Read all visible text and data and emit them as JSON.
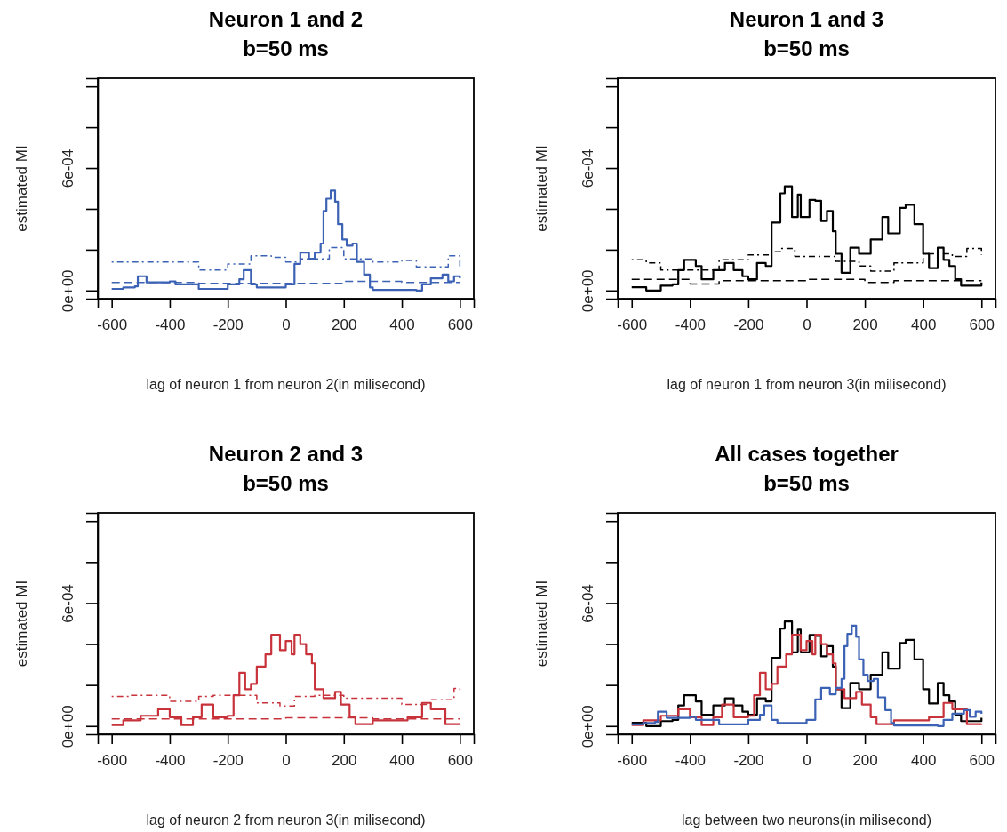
{
  "chart_data": [
    {
      "type": "step",
      "title": "Neuron 1 and 2",
      "subtitle": "b=50 ms",
      "xlabel": "lag of neuron 1 from neuron 2(in milisecond)",
      "ylabel": "estimated MI",
      "xlim": [
        -648,
        648
      ],
      "ylim": [
        -4e-05,
        0.00104
      ],
      "xticks": [
        -600,
        -400,
        -200,
        0,
        200,
        400,
        600
      ],
      "yticks": [
        {
          "value": 0,
          "label": "0e+00"
        },
        {
          "value": 0.0002,
          "label": null
        },
        {
          "value": 0.0004,
          "label": null
        },
        {
          "value": 0.0006,
          "label": "6e-04"
        },
        {
          "value": 0.0008,
          "label": null
        },
        {
          "value": 0.001,
          "label": null
        }
      ],
      "series": [
        {
          "color": "#3b62b5",
          "line_style": "solid",
          "x": [
            -600,
            -560,
            -520,
            -510,
            -480,
            -400,
            -380,
            -300,
            -200,
            -160,
            -145,
            -120,
            -100,
            0,
            30,
            50,
            80,
            100,
            120,
            130,
            140,
            155,
            170,
            180,
            195,
            210,
            230,
            245,
            270,
            290,
            300,
            400,
            450,
            470,
            500,
            540,
            560,
            580,
            600
          ],
          "values": [
            8e-06,
            1.5e-05,
            2e-05,
            7e-05,
            4e-05,
            4.5e-05,
            3e-05,
            8e-06,
            3e-05,
            5.5e-05,
            0.0001,
            3e-05,
            1.5e-05,
            3e-05,
            0.00013,
            0.000186,
            0.000155,
            0.000186,
            0.00023,
            0.00039,
            0.00045,
            0.00049,
            0.000435,
            0.000325,
            0.00025,
            0.00022,
            0.00023,
            0.00014,
            7.8e-05,
            1.5e-05,
            3e-06,
            3e-06,
            0,
            3e-05,
            6e-05,
            7.8e-05,
            4.5e-05,
            7e-05,
            6e-05
          ]
        },
        {
          "color": "#3b62b5",
          "line_style": "dotted",
          "x": [
            -600,
            -400,
            -300,
            -200,
            -120,
            -50,
            0,
            50,
            150,
            200,
            300,
            400,
            450,
            500,
            560,
            600
          ],
          "values": [
            0.00014,
            0.00014,
            0.0001,
            0.00013,
            0.00017,
            0.000163,
            0.00014,
            0.000155,
            0.00021,
            0.000155,
            0.00014,
            0.000147,
            0.000116,
            0.000116,
            0.00017,
            0.000116
          ]
        },
        {
          "color": "#3b62b5",
          "line_style": "dashed",
          "x": [
            -600,
            -300,
            0,
            200,
            400,
            600
          ],
          "values": [
            4e-05,
            3.5e-05,
            3.5e-05,
            4.5e-05,
            4e-05,
            4e-05
          ]
        }
      ]
    },
    {
      "type": "step",
      "title": "Neuron 1 and 3",
      "subtitle": "b=50 ms",
      "xlabel": "lag of neuron 1 from neuron 3(in milisecond)",
      "ylabel": "estimated MI",
      "xlim": [
        -648,
        648
      ],
      "ylim": [
        -4e-05,
        0.00104
      ],
      "xticks": [
        -600,
        -400,
        -200,
        0,
        200,
        400,
        600
      ],
      "yticks": [
        {
          "value": 0,
          "label": "0e+00"
        },
        {
          "value": 0.0002,
          "label": null
        },
        {
          "value": 0.0004,
          "label": null
        },
        {
          "value": 0.0006,
          "label": "6e-04"
        },
        {
          "value": 0.0008,
          "label": null
        },
        {
          "value": 0.001,
          "label": null
        }
      ],
      "series": [
        {
          "color": "#000000",
          "line_style": "solid",
          "x": [
            -600,
            -550,
            -500,
            -460,
            -440,
            -420,
            -380,
            -360,
            -320,
            -280,
            -250,
            -220,
            -200,
            -170,
            -140,
            -120,
            -90,
            -75,
            -50,
            -30,
            -20,
            10,
            30,
            50,
            70,
            90,
            100,
            120,
            150,
            180,
            220,
            260,
            280,
            320,
            340,
            370,
            400,
            420,
            450,
            470,
            490,
            510,
            530,
            600
          ],
          "values": [
            1.6e-05,
            0,
            2.4e-05,
            3e-05,
            0.0001,
            0.00015,
            0.00012,
            5.5e-05,
            0.0001,
            0.000135,
            0.0001,
            7e-05,
            5.5e-05,
            0.000135,
            0.00012,
            0.000333,
            0.000476,
            0.00051,
            0.00036,
            0.00047,
            0.00036,
            0.000444,
            0.00044,
            0.00034,
            0.00039,
            0.00029,
            0.00018,
            8.7e-05,
            0.00021,
            0.00018,
            0.00025,
            0.00036,
            0.00028,
            0.000405,
            0.00042,
            0.000325,
            0.00018,
            0.00011,
            0.00021,
            0.00015,
            0.00012,
            5.5e-05,
            2.4e-05,
            4e-05
          ]
        },
        {
          "color": "#000000",
          "line_style": "dotted",
          "x": [
            -600,
            -550,
            -500,
            -300,
            -200,
            -120,
            -90,
            -40,
            100,
            180,
            220,
            300,
            400,
            500,
            550,
            600
          ],
          "values": [
            0.00015,
            0.000135,
            0.0001,
            0.00015,
            0.000175,
            0.00019,
            0.000206,
            0.000167,
            0.000143,
            0.00012,
            9.5e-05,
            0.000135,
            0.00018,
            0.000167,
            0.000206,
            0.000175
          ]
        },
        {
          "color": "#000000",
          "line_style": "dashed",
          "x": [
            -600,
            -400,
            -300,
            0,
            200,
            300,
            600
          ],
          "values": [
            5.5e-05,
            3.2e-05,
            4.8e-05,
            5.5e-05,
            4e-05,
            4.8e-05,
            4.8e-05
          ]
        }
      ]
    },
    {
      "type": "step",
      "title": "Neuron 2 and 3",
      "subtitle": "b=50 ms",
      "xlabel": "lag of neuron 2 from neuron 3(in milisecond)",
      "ylabel": "estimated MI",
      "xlim": [
        -648,
        648
      ],
      "ylim": [
        -4e-05,
        0.00104
      ],
      "xticks": [
        -600,
        -400,
        -200,
        0,
        200,
        400,
        600
      ],
      "yticks": [
        {
          "value": 0,
          "label": "0e+00"
        },
        {
          "value": 0.0002,
          "label": null
        },
        {
          "value": 0.0004,
          "label": null
        },
        {
          "value": 0.0006,
          "label": "6e-04"
        },
        {
          "value": 0.0008,
          "label": null
        },
        {
          "value": 0.001,
          "label": null
        }
      ],
      "series": [
        {
          "color": "#c8323a",
          "line_style": "solid",
          "x": [
            -600,
            -560,
            -500,
            -440,
            -400,
            -360,
            -320,
            -290,
            -250,
            -200,
            -180,
            -160,
            -140,
            -120,
            -100,
            -70,
            -50,
            -20,
            0,
            20,
            30,
            50,
            70,
            90,
            100,
            130,
            170,
            190,
            220,
            240,
            300,
            350,
            420,
            470,
            500,
            550,
            600
          ],
          "values": [
            5e-06,
            2.8e-05,
            5e-05,
            8.2e-05,
            4.3e-05,
            5e-06,
            4.3e-05,
            0.000105,
            4.3e-05,
            5e-05,
            0.00015,
            0.00026,
            0.00018,
            0.000206,
            0.00029,
            0.00035,
            0.000445,
            0.00037,
            0.000415,
            0.00035,
            0.000445,
            0.0004,
            0.00035,
            0.000306,
            0.00018,
            0.000136,
            0.000167,
            0.000105,
            4.3e-05,
            9e-06,
            2.8e-05,
            2.8e-05,
            4.3e-05,
            0.000113,
            8.2e-05,
            9e-06,
            1.2e-05
          ]
        },
        {
          "color": "#c8323a",
          "line_style": "dotted",
          "x": [
            -600,
            -540,
            -400,
            -300,
            -250,
            -200,
            -100,
            -20,
            30,
            100,
            200,
            300,
            400,
            500,
            580,
            600
          ],
          "values": [
            0.000144,
            0.00015,
            0.00012,
            0.000144,
            0.00015,
            0.00015,
            0.000113,
            9.8e-05,
            0.000144,
            0.00015,
            0.000136,
            0.000136,
            0.000105,
            0.000128,
            0.000183,
            0.000167
          ]
        },
        {
          "color": "#c8323a",
          "line_style": "dashed",
          "x": [
            -600,
            0,
            300,
            600
          ],
          "values": [
            3.5e-05,
            4e-05,
            3.5e-05,
            3.5e-05
          ]
        }
      ]
    },
    {
      "type": "step",
      "title": "All cases together",
      "subtitle": "b=50 ms",
      "xlabel": "lag between two neurons(in milisecond)",
      "ylabel": "estimated MI",
      "xlim": [
        -648,
        648
      ],
      "ylim": [
        -4e-05,
        0.00104
      ],
      "xticks": [
        -600,
        -400,
        -200,
        0,
        200,
        400,
        600
      ],
      "yticks": [
        {
          "value": 0,
          "label": "0e+00"
        },
        {
          "value": 0.0002,
          "label": null
        },
        {
          "value": 0.0004,
          "label": null
        },
        {
          "value": 0.0006,
          "label": "6e-04"
        },
        {
          "value": 0.0008,
          "label": null
        },
        {
          "value": 0.001,
          "label": null
        }
      ],
      "series": [
        {
          "color": "#000000",
          "line_style": "solid",
          "x": [
            -600,
            -550,
            -500,
            -460,
            -440,
            -420,
            -380,
            -360,
            -320,
            -280,
            -250,
            -220,
            -200,
            -170,
            -140,
            -120,
            -90,
            -75,
            -50,
            -30,
            -20,
            10,
            30,
            50,
            70,
            90,
            100,
            120,
            150,
            180,
            220,
            260,
            280,
            320,
            340,
            370,
            400,
            420,
            450,
            470,
            490,
            510,
            530,
            600
          ],
          "values": [
            1.6e-05,
            0,
            2.4e-05,
            3e-05,
            0.0001,
            0.00015,
            0.00012,
            5.5e-05,
            0.0001,
            0.000135,
            0.0001,
            7e-05,
            5.5e-05,
            0.000135,
            0.00012,
            0.000333,
            0.000476,
            0.00051,
            0.00036,
            0.00047,
            0.00036,
            0.000444,
            0.00044,
            0.00034,
            0.00039,
            0.00029,
            0.00018,
            8.7e-05,
            0.00021,
            0.00018,
            0.00025,
            0.00036,
            0.00028,
            0.000405,
            0.00042,
            0.000325,
            0.00018,
            0.00011,
            0.00021,
            0.00015,
            0.00012,
            5.5e-05,
            2.4e-05,
            4e-05
          ]
        },
        {
          "color": "#c8323a",
          "line_style": "solid",
          "x": [
            -600,
            -560,
            -500,
            -440,
            -400,
            -360,
            -320,
            -290,
            -250,
            -200,
            -180,
            -160,
            -140,
            -120,
            -100,
            -70,
            -50,
            -20,
            0,
            20,
            30,
            50,
            70,
            90,
            100,
            130,
            170,
            190,
            220,
            240,
            300,
            350,
            420,
            470,
            500,
            550,
            600
          ],
          "values": [
            5e-06,
            2.8e-05,
            5e-05,
            8.2e-05,
            4.3e-05,
            5e-06,
            4.3e-05,
            0.000105,
            4.3e-05,
            5e-05,
            0.00015,
            0.00026,
            0.00018,
            0.000206,
            0.00029,
            0.00035,
            0.000445,
            0.00037,
            0.000415,
            0.00035,
            0.000445,
            0.0004,
            0.00035,
            0.000306,
            0.00018,
            0.000136,
            0.000167,
            0.000105,
            4.3e-05,
            9e-06,
            2.8e-05,
            2.8e-05,
            4.3e-05,
            0.000113,
            8.2e-05,
            9e-06,
            1.2e-05
          ]
        },
        {
          "color": "#3b62b5",
          "line_style": "solid",
          "x": [
            -600,
            -560,
            -520,
            -510,
            -480,
            -400,
            -380,
            -300,
            -200,
            -160,
            -145,
            -120,
            -100,
            0,
            30,
            50,
            80,
            100,
            120,
            130,
            140,
            155,
            170,
            180,
            195,
            210,
            230,
            245,
            270,
            290,
            300,
            400,
            450,
            470,
            500,
            540,
            560,
            580,
            600
          ],
          "values": [
            8e-06,
            1.5e-05,
            2e-05,
            7e-05,
            4e-05,
            4.5e-05,
            3e-05,
            8e-06,
            3e-05,
            5.5e-05,
            0.0001,
            3e-05,
            1.5e-05,
            3e-05,
            0.00013,
            0.000186,
            0.000155,
            0.000186,
            0.00023,
            0.00039,
            0.00045,
            0.00049,
            0.000435,
            0.000325,
            0.00025,
            0.00022,
            0.00023,
            0.00014,
            7.8e-05,
            1.5e-05,
            3e-06,
            3e-06,
            0,
            3e-05,
            6e-05,
            7.8e-05,
            4.5e-05,
            7e-05,
            6e-05
          ]
        }
      ]
    }
  ]
}
